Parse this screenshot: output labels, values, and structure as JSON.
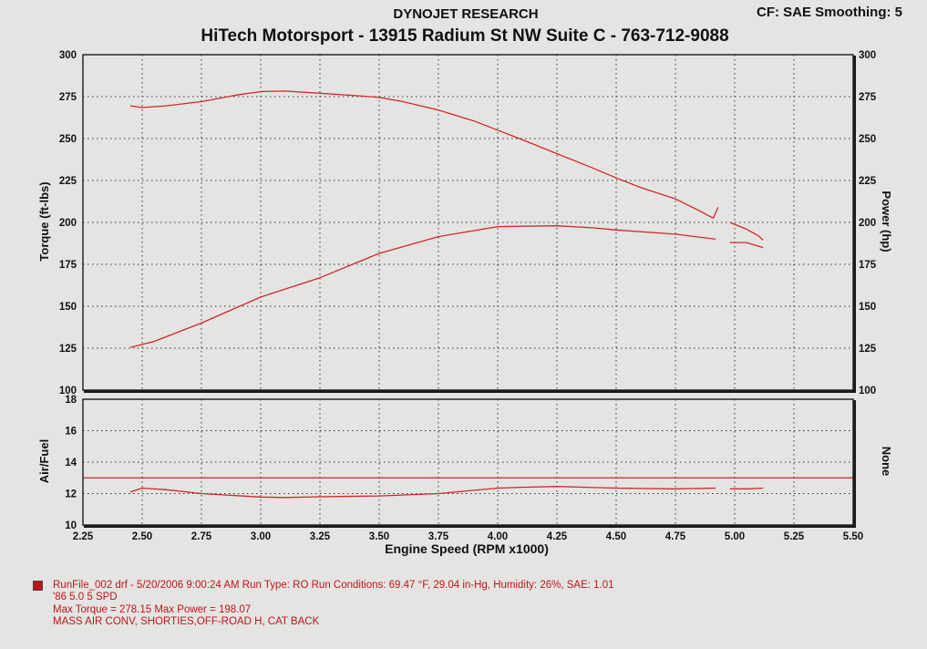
{
  "header": {
    "organization": "DYNOJET RESEARCH",
    "correction": "CF: SAE  Smoothing: 5",
    "shop_line": "HiTech Motorsport - 13915 Radium St NW  Suite C - 763-712-9088"
  },
  "colors": {
    "trace": "#d2262b",
    "grid": "#333333",
    "frame": "#1a1a1a",
    "background": "#e4e4e2"
  },
  "chart_data": [
    {
      "type": "line",
      "title": "HiTech Motorsport - 13915 Radium St NW  Suite C - 763-712-9088",
      "xlabel": "Engine Speed (RPM x1000)",
      "ylabel": "Torque (ft-lbs)",
      "ylabel_right": "Power (hp)",
      "xlim": [
        2.25,
        5.5
      ],
      "ylim": [
        100,
        300
      ],
      "x_ticks": [
        "2.25",
        "2.50",
        "2.75",
        "3.00",
        "3.25",
        "3.50",
        "3.75",
        "4.00",
        "4.25",
        "4.50",
        "4.75",
        "5.00",
        "5.25",
        "5.50"
      ],
      "y_ticks": [
        "100",
        "125",
        "150",
        "175",
        "200",
        "225",
        "250",
        "275",
        "300"
      ],
      "grid": true,
      "series": [
        {
          "role": "torque",
          "segments": [
            [
              [
                2.45,
                269.5
              ],
              [
                2.5,
                268.5
              ],
              [
                2.6,
                269.5
              ],
              [
                2.75,
                272
              ],
              [
                2.9,
                276
              ],
              [
                3.0,
                278
              ],
              [
                3.1,
                278.3
              ],
              [
                3.25,
                277
              ],
              [
                3.4,
                275.6
              ],
              [
                3.5,
                274.5
              ],
              [
                3.6,
                272
              ],
              [
                3.75,
                267
              ],
              [
                3.9,
                260.5
              ],
              [
                4.0,
                255
              ],
              [
                4.1,
                249.5
              ],
              [
                4.25,
                241
              ],
              [
                4.4,
                232.5
              ],
              [
                4.5,
                226.5
              ],
              [
                4.6,
                221
              ],
              [
                4.75,
                214
              ],
              [
                4.85,
                207
              ],
              [
                4.91,
                202.5
              ]
            ],
            [
              [
                4.91,
                202.5
              ],
              [
                4.93,
                209
              ]
            ],
            [
              [
                4.98,
                200
              ],
              [
                5.05,
                196
              ],
              [
                5.1,
                192
              ],
              [
                5.12,
                189.5
              ]
            ]
          ]
        },
        {
          "role": "power",
          "segments": [
            [
              [
                2.45,
                125.5
              ],
              [
                2.55,
                129
              ],
              [
                2.75,
                140
              ],
              [
                3.0,
                155.5
              ],
              [
                3.25,
                167
              ],
              [
                3.5,
                181.5
              ],
              [
                3.75,
                191.5
              ],
              [
                4.0,
                197.5
              ],
              [
                4.25,
                198
              ],
              [
                4.4,
                196.8
              ],
              [
                4.5,
                195.5
              ],
              [
                4.75,
                193
              ],
              [
                4.92,
                190
              ]
            ],
            [
              [
                4.98,
                188
              ],
              [
                5.05,
                188
              ],
              [
                5.12,
                185
              ]
            ]
          ]
        }
      ]
    },
    {
      "type": "line",
      "ylabel": "Air/Fuel",
      "ylabel_right": "None",
      "xlim": [
        2.25,
        5.5
      ],
      "ylim": [
        10,
        18
      ],
      "y_ticks": [
        "10",
        "12",
        "14",
        "16",
        "18"
      ],
      "reference_line": 13.0,
      "grid": true,
      "series": [
        {
          "role": "air_fuel",
          "segments": [
            [
              [
                2.45,
                12.1
              ],
              [
                2.5,
                12.35
              ],
              [
                2.6,
                12.25
              ],
              [
                2.75,
                12.0
              ],
              [
                3.0,
                11.78
              ],
              [
                3.1,
                11.75
              ],
              [
                3.25,
                11.8
              ],
              [
                3.5,
                11.85
              ],
              [
                3.75,
                12.0
              ],
              [
                4.0,
                12.35
              ],
              [
                4.1,
                12.4
              ],
              [
                4.25,
                12.45
              ],
              [
                4.5,
                12.35
              ],
              [
                4.75,
                12.3
              ],
              [
                4.92,
                12.35
              ]
            ],
            [
              [
                4.98,
                12.3
              ],
              [
                5.05,
                12.3
              ],
              [
                5.12,
                12.35
              ]
            ]
          ]
        }
      ]
    }
  ],
  "footer": {
    "run_info": "RunFile_002 drf - 5/20/2006 9:00:24 AM  Run Type: RO  Run Conditions: 69.47 °F, 29.04 in-Hg,  Humidity:  26%, SAE: 1.01",
    "vehicle": "'86 5.0 5 SPD",
    "maxima": "Max Torque = 278.15  Max Power = 198.07",
    "mods": "MASS AIR CONV, SHORTIES,OFF-ROAD H, CAT BACK"
  }
}
